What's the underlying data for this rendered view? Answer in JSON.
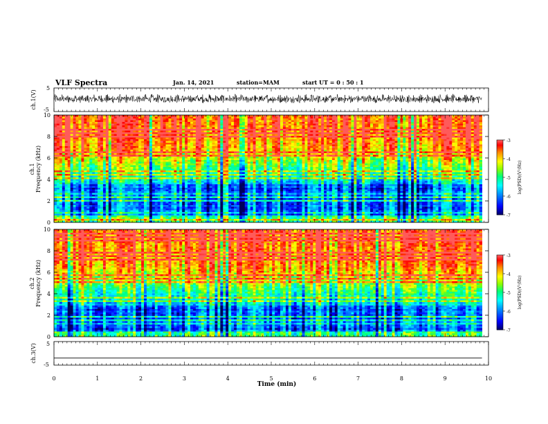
{
  "header": {
    "title": "VLF Spectra",
    "date": "Jan. 14, 2021",
    "station": "station=MAM",
    "start": "start  UT =  0 : 50 : 1"
  },
  "chart_data": [
    {
      "type": "line",
      "panel": "ch1-waveform",
      "ylabel": "ch.1(V)",
      "ylim": [
        -5,
        5
      ],
      "yticks": [
        "5",
        "-5"
      ],
      "description_of_values": "dense oscillating signal between about -1.5 and 2.5 V",
      "color": "#000000"
    },
    {
      "type": "heatmap",
      "panel": "ch1-spectrogram",
      "ylabel": "ch.1\nFrequency (kHz)",
      "ylim": [
        0,
        10
      ],
      "yticks": [
        "0",
        "2",
        "4",
        "6",
        "8",
        "10"
      ],
      "colorbar": {
        "label": "log(PSD)(V²/Hz)",
        "range": [
          -7,
          -3
        ],
        "ticks": [
          "-3",
          "-4",
          "-5",
          "-6",
          "-7"
        ]
      },
      "low_power_band_khz": [
        0.5,
        3.5
      ],
      "high_power_band_khz": [
        7,
        10
      ]
    },
    {
      "type": "heatmap",
      "panel": "ch2-spectrogram",
      "ylabel": "ch.2\nFrequency (kHz)",
      "ylim": [
        0,
        10
      ],
      "yticks": [
        "0",
        "2",
        "4",
        "6",
        "8",
        "10"
      ],
      "colorbar": {
        "label": "log(PSD)(V²/Hz)",
        "range": [
          -7,
          -3
        ],
        "ticks": [
          "-3",
          "-4",
          "-5",
          "-6",
          "-7"
        ]
      },
      "low_power_band_khz": [
        0.5,
        3
      ],
      "high_power_band_khz": [
        6.5,
        10
      ]
    },
    {
      "type": "line",
      "panel": "ch3-waveform",
      "ylabel": "ch.3(V)",
      "ylim": [
        -5,
        5
      ],
      "yticks": [
        "5",
        "-5"
      ],
      "values_flat": -2,
      "color": "#000000"
    }
  ],
  "xaxis": {
    "label": "Time  (min)",
    "xlim": [
      0,
      10
    ],
    "data_end_min": 9.85,
    "ticks": [
      "0",
      "1",
      "2",
      "3",
      "4",
      "5",
      "6",
      "7",
      "8",
      "9",
      "10"
    ]
  },
  "colors": {
    "palette": [
      "#000080",
      "#0000ff",
      "#00bfff",
      "#00ffff",
      "#00ff80",
      "#80ff00",
      "#ffff00",
      "#ff8000",
      "#ff0000",
      "#ffffff"
    ]
  }
}
